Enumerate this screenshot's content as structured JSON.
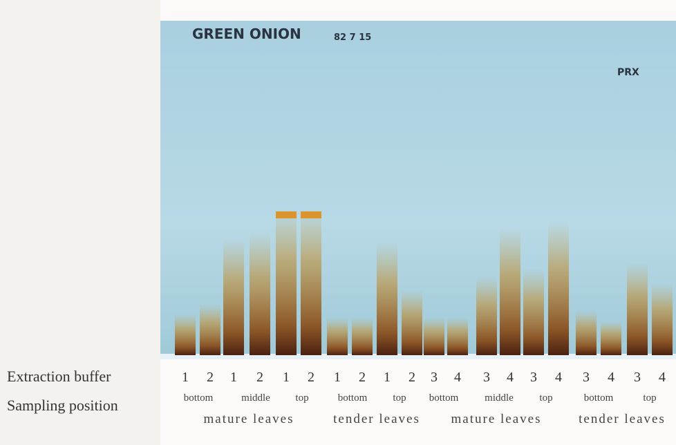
{
  "header": {
    "title": "GREEN ONION",
    "date": "82 7 15",
    "label": "PRX"
  },
  "extraction_buffer": {
    "label": "Extraction buffer",
    "values": [
      1,
      2,
      1,
      2,
      1,
      2,
      1,
      2,
      1,
      2,
      3,
      4,
      3,
      4,
      3,
      4,
      3,
      4,
      3,
      4
    ]
  },
  "sampling_position": {
    "label": "Sampling position",
    "positions": [
      "bottom",
      "middle",
      "top",
      "bottom",
      "top",
      "bottom",
      "middle",
      "top",
      "bottom",
      "top"
    ],
    "groups": [
      "mature leaves",
      "tender leaves",
      "mature leaves",
      "tender leaves"
    ]
  }
}
